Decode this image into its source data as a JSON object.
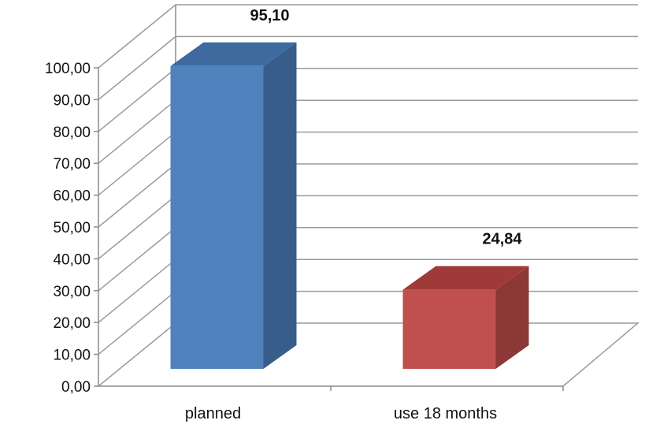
{
  "chart_data": {
    "type": "bar",
    "title": "",
    "xlabel": "",
    "ylabel": "",
    "categories": [
      "planned",
      "use 18 months"
    ],
    "values": [
      95.1,
      24.84
    ],
    "value_labels": [
      "95,10",
      "24,84"
    ],
    "ylim": [
      0,
      100
    ],
    "yticks": [
      0,
      10,
      20,
      30,
      40,
      50,
      60,
      70,
      80,
      90,
      100
    ],
    "ytick_labels": [
      "0,00",
      "10,00",
      "20,00",
      "30,00",
      "40,00",
      "50,00",
      "60,00",
      "70,00",
      "80,00",
      "90,00",
      "100,00"
    ],
    "grid": true,
    "style": "3d-column",
    "colors": [
      "#4f81bd",
      "#c0504d"
    ],
    "side_colors": [
      "#385d8a",
      "#8c3836"
    ],
    "top_colors": [
      "#3e6aa0",
      "#9e3b38"
    ]
  }
}
